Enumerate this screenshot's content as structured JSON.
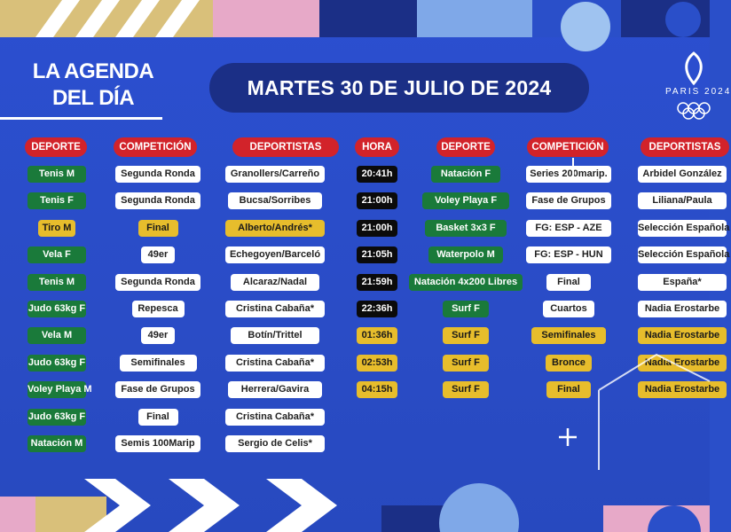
{
  "header": {
    "title_line1": "LA AGENDA",
    "title_line2": "DEL DÍA",
    "date": "MARTES 30 DE JULIO DE 2024",
    "logo_text": "PARIS 2024"
  },
  "columns": {
    "left_deporte": "DEPORTE",
    "left_competicion": "COMPETICIÓN",
    "left_deportistas": "DEPORTISTAS",
    "hora": "HORA",
    "right_deporte": "DEPORTE",
    "right_competicion": "COMPETICIÓN",
    "right_deportistas": "DEPORTISTAS"
  },
  "left_rows": [
    {
      "deporte": "Tenis M",
      "competicion": "Segunda Ronda",
      "deportistas": "Granollers/Carreño",
      "hora": "20:41h",
      "hl": false
    },
    {
      "deporte": "Tenis F",
      "competicion": "Segunda Ronda",
      "deportistas": "Bucsa/Sorribes",
      "hora": "21:00h",
      "hl": false
    },
    {
      "deporte": "Tiro M",
      "competicion": "Final",
      "deportistas": "Alberto/Andrés*",
      "hora": "21:00h",
      "hl": true
    },
    {
      "deporte": "Vela F",
      "competicion": "49er",
      "deportistas": "Echegoyen/Barceló",
      "hora": "21:05h",
      "hl": false
    },
    {
      "deporte": "Tenis M",
      "competicion": "Segunda Ronda",
      "deportistas": "Alcaraz/Nadal",
      "hora": "21:59h",
      "hl": false
    },
    {
      "deporte": "Judo 63kg F",
      "competicion": "Repesca",
      "deportistas": "Cristina Cabaña*",
      "hora": "22:36h",
      "hl": false
    },
    {
      "deporte": "Vela M",
      "competicion": "49er",
      "deportistas": "Botín/Trittel",
      "hora": "01:36h",
      "hl": false
    },
    {
      "deporte": "Judo 63kg F",
      "competicion": "Semifinales",
      "deportistas": "Cristina Cabaña*",
      "hora": "02:53h",
      "hl": false
    },
    {
      "deporte": "Voley Playa M",
      "competicion": "Fase de Grupos",
      "deportistas": "Herrera/Gavira",
      "hora": "04:15h",
      "hl": false
    },
    {
      "deporte": "Judo 63kg F",
      "competicion": "Final",
      "deportistas": "Cristina Cabaña*",
      "hl": false
    },
    {
      "deporte": "Natación M",
      "competicion": "Semis 100Marip",
      "deportistas": "Sergio de Celis*",
      "hl": false
    }
  ],
  "right_rows": [
    {
      "deporte": "Natación F",
      "competicion": "Series 200marip.",
      "deportistas": "Arbidel González",
      "hl": false
    },
    {
      "deporte": "Voley Playa F",
      "competicion": "Fase de Grupos",
      "deportistas": "Liliana/Paula",
      "hl": false
    },
    {
      "deporte": "Basket 3x3 F",
      "competicion": "FG: ESP - AZE",
      "deportistas": "Selección Española",
      "hl": false
    },
    {
      "deporte": "Waterpolo M",
      "competicion": "FG: ESP - HUN",
      "deportistas": "Selección Española",
      "hl": false
    },
    {
      "deporte": "Natación 4x200 Libres",
      "competicion": "Final",
      "deportistas": "España*",
      "hl": false
    },
    {
      "deporte": "Surf F",
      "competicion": "Cuartos",
      "deportistas": "Nadia Erostarbe",
      "hl": false
    },
    {
      "deporte": "Surf F",
      "competicion": "Semifinales",
      "deportistas": "Nadia Erostarbe",
      "hl": true
    },
    {
      "deporte": "Surf F",
      "competicion": "Bronce",
      "deportistas": "Nadia Erostarbe",
      "hl": true
    },
    {
      "deporte": "Surf F",
      "competicion": "Final",
      "deportistas": "Nadia Erostarbe",
      "hl": true
    }
  ],
  "colors": {
    "background": "#2a4fc9",
    "header_red": "#d2232a",
    "sport_green": "#1a7a3a",
    "highlight_yellow": "#e7bd2c",
    "date_pill": "#1b2f86"
  }
}
